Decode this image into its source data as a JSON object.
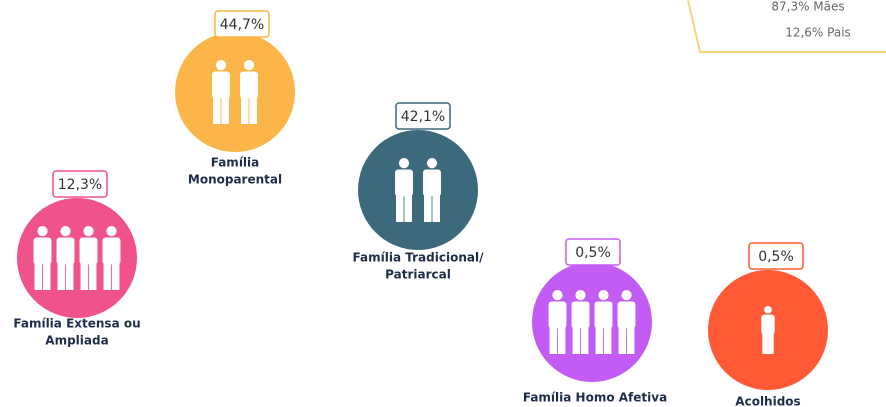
{
  "note": {
    "lines": [
      "87,3% Mães",
      "12,6% Pais"
    ]
  },
  "items": [
    {
      "value": "12,3%",
      "label": [
        "Família Extensa ou",
        "Ampliada"
      ]
    },
    {
      "value": "44,7%",
      "label": [
        "Família",
        "Monoparental"
      ]
    },
    {
      "value": "42,1%",
      "label": [
        "Família Tradicional/",
        "Patriarcal"
      ]
    },
    {
      "value": "0,5%",
      "label": [
        "Família Homo Afetiva"
      ]
    },
    {
      "value": "0,5%",
      "label": [
        "Acolhidos"
      ]
    }
  ]
}
